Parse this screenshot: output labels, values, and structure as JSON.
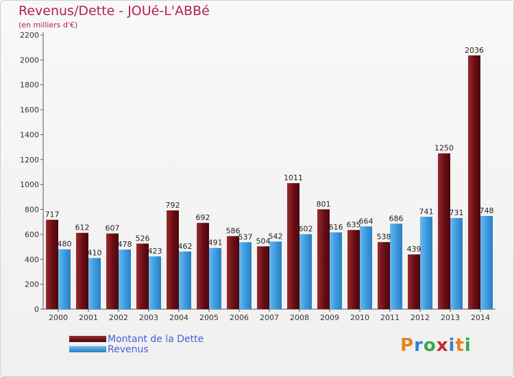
{
  "header": {
    "title": "Revenus/Dette - JOUé-L'ABBé",
    "subtitle": "(en milliers d'€)"
  },
  "legend": {
    "items": [
      {
        "label": "Montant de la Dette",
        "color": "#6b1016"
      },
      {
        "label": "Revenus",
        "color": "#3d9be0"
      }
    ]
  },
  "logo": {
    "text": "Proxiti",
    "colors": [
      "#e8821e",
      "#3a7fd0",
      "#3aa84a",
      "#c8262e",
      "#3a7fd0",
      "#e8821e",
      "#3aa84a"
    ]
  },
  "chart_data": {
    "type": "bar",
    "title": "Revenus/Dette - JOUé-L'ABBé",
    "ylabel": "(en milliers d'€)",
    "xlabel": "",
    "ylim": [
      0,
      2200
    ],
    "yticks": [
      0,
      200,
      400,
      600,
      800,
      1000,
      1200,
      1400,
      1600,
      1800,
      2000,
      2200
    ],
    "grid": false,
    "legend_position": "bottom-left",
    "categories": [
      "2000",
      "2001",
      "2002",
      "2003",
      "2004",
      "2005",
      "2006",
      "2007",
      "2008",
      "2009",
      "2010",
      "2011",
      "2012",
      "2013",
      "2014"
    ],
    "series": [
      {
        "name": "Montant de la Dette",
        "color": "#6b1016",
        "values": [
          717,
          612,
          607,
          526,
          792,
          692,
          586,
          504,
          1011,
          801,
          635,
          538,
          439,
          1250,
          2036
        ]
      },
      {
        "name": "Revenus",
        "color": "#3d9be0",
        "values": [
          480,
          410,
          478,
          423,
          462,
          491,
          537,
          542,
          602,
          616,
          664,
          686,
          741,
          731,
          748
        ]
      }
    ]
  }
}
